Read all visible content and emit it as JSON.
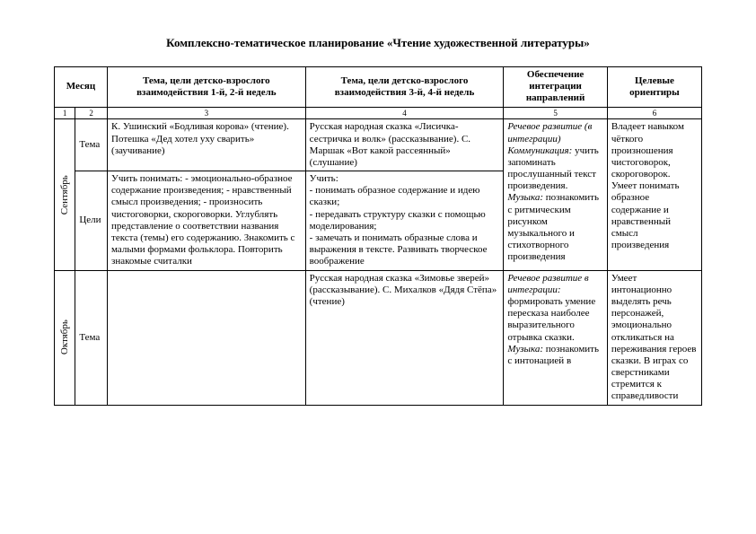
{
  "title": "Комплексно-тематическое планирование «Чтение художественной литературы»",
  "headers": {
    "month": "Месяц",
    "theme12": "Тема, цели детско-взрослого взаимодействия 1-й, 2-й недель",
    "theme34": "Тема, цели детско-взрослого взаимодействия 3-й, 4-й недель",
    "integration": "Обеспечение интеграции направлений",
    "targets": "Целевые ориентиры"
  },
  "colnums": {
    "c1": "1",
    "c2": "2",
    "c3": "3",
    "c4": "4",
    "c5": "5",
    "c6": "6"
  },
  "labels": {
    "tema": "Тема",
    "celi": "Цели"
  },
  "months": {
    "sep": "Сентябрь",
    "oct": "Октябрь"
  },
  "sep": {
    "tema1": "К. Ушинский «Бодливая корова» (чтение). Потешка «Дед хотел уху сварить» (заучивание)",
    "tema2": "Русская народная сказка «Лисичка-сестричка и волк» (рассказывание). С. Маршак «Вот какой рассеянный» (слушание)",
    "celi1": "Учить понимать: - эмоционально-образное содержание произведения; - нравственный смысл произведения; - произносить чистоговорки, скороговорки. Углублять представление о соответствии названия текста (темы) его содержанию. Знакомить с малыми формами фольклора. Повторить знакомые считалки",
    "celi2": "Учить:\n- понимать образное содержание и идею сказки;\n- передавать структуру сказки с помощью моделирования;\n- замечать и понимать образные слова и выражения в тексте. Развивать творческое воображение",
    "integration_a": "Речевое развитие (в интеграции) Коммуникация:",
    "integration_b": " учить запоминать прослушанный текст произведения. ",
    "integration_c": "Музыка:",
    "integration_d": " познакомить с ритмическим рисунком музыкального и стихотворного произведения",
    "targets": "Владеет навыком чёткого произношения чистоговорок, скороговорок. Умеет понимать образное содержание и нравственный смысл произведения"
  },
  "oct": {
    "tema1": "",
    "tema2": "Русская народная сказка «Зимовье зверей» (рассказывание). С. Михалков «Дядя Стёпа» (чтение)",
    "integration_a": "Речевое развитие в интеграции:",
    "integration_b": " формировать умение пересказа наиболее выразительного отрывка сказки. ",
    "integration_c": "Музыка:",
    "integration_d": " познакомить с интонацией в",
    "targets": "Умеет интонационно выделять речь персонажей, эмоционально откликаться на переживания героев сказки. В играх со сверстниками стремится к справедливости"
  }
}
